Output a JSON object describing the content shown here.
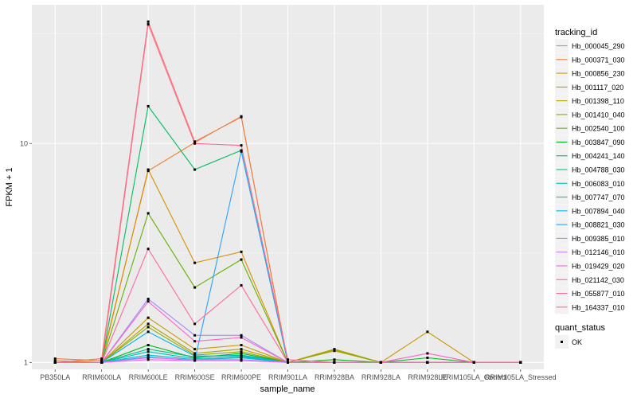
{
  "chart_data": {
    "type": "line",
    "xlabel": "sample_name",
    "ylabel": "FPKM + 1",
    "y_scale": "log10",
    "ylim": [
      0.93,
      43
    ],
    "y_ticks": [
      {
        "value": 1,
        "label": "1"
      },
      {
        "value": 10,
        "label": "10"
      }
    ],
    "categories": [
      "PB350LA",
      "RRIM600LA",
      "RRIM600LE",
      "RRIM600SE",
      "RRIM600PE",
      "RRIM901LA",
      "RRIM928BA",
      "RRIM928LA",
      "RRIM928LE",
      "RRIM105LA_Control",
      "RRIM105LA_Stressed"
    ],
    "grid": true,
    "background": "#ebebeb",
    "legend": {
      "title": "tracking_id",
      "position": "right"
    },
    "series": [
      {
        "name": "Hb_000045_290",
        "color": "#F8766D",
        "values": [
          1.0,
          1.04,
          36.0,
          10.2,
          13.2,
          1.0,
          1.0,
          1.0,
          1.0,
          1.0,
          1.0
        ]
      },
      {
        "name": "Hb_000371_030",
        "color": "#EC8239",
        "values": [
          1.04,
          1.02,
          7.5,
          10.1,
          13.3,
          1.0,
          1.0,
          1.0,
          1.0,
          1.0,
          1.0
        ]
      },
      {
        "name": "Hb_000856_230",
        "color": "#DB8E00",
        "values": [
          1.02,
          1.0,
          7.6,
          2.85,
          3.2,
          1.0,
          1.0,
          1.0,
          1.0,
          1.0,
          1.0
        ]
      },
      {
        "name": "Hb_001117_020",
        "color": "#C79800",
        "values": [
          1.0,
          1.0,
          1.6,
          1.15,
          1.2,
          1.0,
          1.14,
          1.0,
          1.38,
          1.0,
          1.0
        ]
      },
      {
        "name": "Hb_001398_110",
        "color": "#AEA200",
        "values": [
          1.0,
          1.0,
          1.5,
          1.1,
          1.15,
          1.0,
          1.15,
          1.0,
          1.0,
          1.0,
          1.0
        ]
      },
      {
        "name": "Hb_001410_040",
        "color": "#8FAA00",
        "values": [
          1.0,
          1.0,
          1.45,
          1.08,
          1.12,
          1.0,
          1.13,
          1.0,
          1.0,
          1.0,
          1.0
        ]
      },
      {
        "name": "Hb_002540_100",
        "color": "#64B200",
        "values": [
          1.0,
          1.0,
          4.8,
          2.2,
          2.95,
          1.0,
          1.0,
          1.0,
          1.0,
          1.0,
          1.0
        ]
      },
      {
        "name": "Hb_003847_090",
        "color": "#00B81B",
        "values": [
          1.0,
          1.0,
          1.2,
          1.05,
          1.1,
          1.0,
          1.03,
          1.0,
          1.05,
          1.0,
          1.0
        ]
      },
      {
        "name": "Hb_004241_140",
        "color": "#00BD5C",
        "values": [
          1.0,
          1.0,
          14.8,
          7.6,
          9.3,
          1.0,
          1.0,
          1.0,
          1.0,
          1.0,
          1.0
        ]
      },
      {
        "name": "Hb_004788_030",
        "color": "#00C08B",
        "values": [
          1.0,
          1.0,
          1.15,
          1.06,
          1.08,
          1.0,
          1.0,
          1.0,
          1.0,
          1.0,
          1.0
        ]
      },
      {
        "name": "Hb_006083_010",
        "color": "#00C1B2",
        "values": [
          1.0,
          1.0,
          1.12,
          1.04,
          1.06,
          1.0,
          1.0,
          1.0,
          1.0,
          1.0,
          1.0
        ]
      },
      {
        "name": "Hb_007747_070",
        "color": "#00BCD6",
        "values": [
          1.0,
          1.0,
          1.08,
          1.03,
          1.05,
          1.0,
          1.0,
          1.0,
          1.0,
          1.0,
          1.0
        ]
      },
      {
        "name": "Hb_007894_040",
        "color": "#00B3F2",
        "values": [
          1.0,
          1.0,
          1.38,
          1.07,
          1.07,
          1.0,
          1.0,
          1.0,
          1.0,
          1.0,
          1.0
        ]
      },
      {
        "name": "Hb_008821_030",
        "color": "#29A3FF",
        "values": [
          1.0,
          1.0,
          1.06,
          1.02,
          9.2,
          1.0,
          1.0,
          1.0,
          1.0,
          1.0,
          1.0
        ]
      },
      {
        "name": "Hb_009385_010",
        "color": "#9C8DFF",
        "values": [
          1.0,
          1.0,
          1.95,
          1.33,
          1.33,
          1.0,
          1.0,
          1.0,
          1.0,
          1.0,
          1.0
        ]
      },
      {
        "name": "Hb_012146_010",
        "color": "#D277FF",
        "values": [
          1.0,
          1.0,
          1.05,
          1.03,
          1.03,
          1.0,
          1.0,
          1.0,
          1.0,
          1.0,
          1.0
        ]
      },
      {
        "name": "Hb_019429_020",
        "color": "#F166E8",
        "values": [
          1.0,
          1.0,
          1.03,
          1.02,
          1.02,
          1.0,
          1.0,
          1.0,
          1.0,
          1.0,
          1.0
        ]
      },
      {
        "name": "Hb_021142_030",
        "color": "#FF61C7",
        "values": [
          1.0,
          1.0,
          1.9,
          1.25,
          1.3,
          1.0,
          1.0,
          1.0,
          1.1,
          1.0,
          1.0
        ]
      },
      {
        "name": "Hb_055877_010",
        "color": "#FF689E",
        "values": [
          1.0,
          1.0,
          3.3,
          1.5,
          2.25,
          1.0,
          1.0,
          1.0,
          1.0,
          1.0,
          1.0
        ]
      },
      {
        "name": "Hb_164337_010",
        "color": "#FF6C91",
        "values": [
          1.0,
          1.0,
          35.0,
          10.0,
          9.8,
          1.03,
          1.0,
          1.0,
          1.0,
          1.0,
          1.0
        ]
      }
    ],
    "shape_legend": {
      "title": "quant_status",
      "items": [
        "OK"
      ]
    }
  }
}
